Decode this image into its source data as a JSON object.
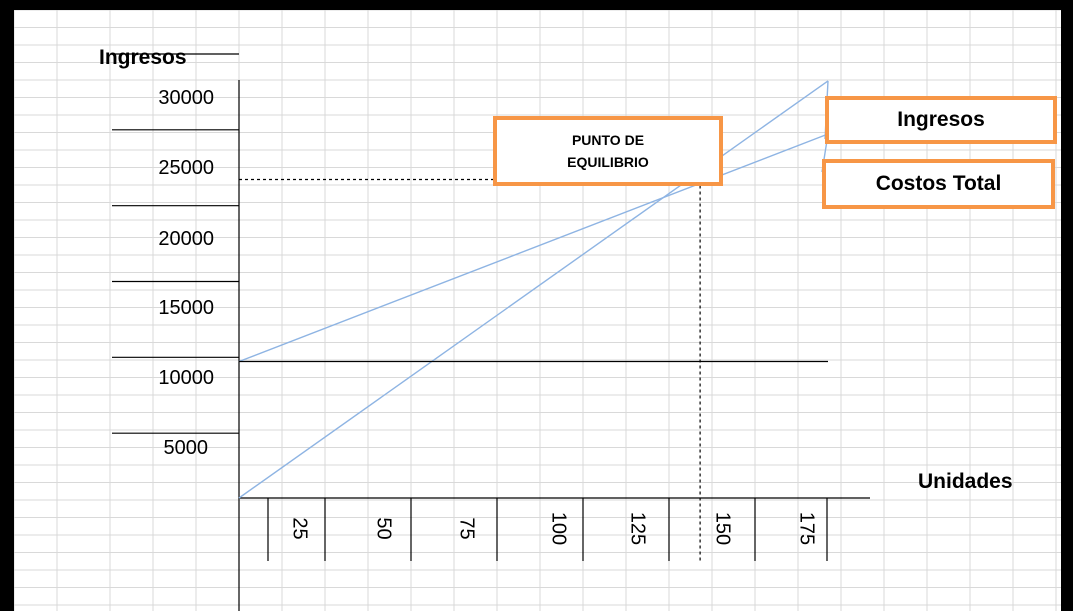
{
  "chart_data": {
    "type": "line",
    "ylabel": "Ingresos",
    "xlabel": "Unidades",
    "y_ticks": [
      "30000",
      "25000",
      "20000",
      "15000",
      "10000",
      "5000"
    ],
    "x_ticks": [
      "25",
      "50",
      "75",
      "100",
      "125",
      "150",
      "175"
    ],
    "xlim": [
      0,
      175
    ],
    "ylim": [
      0,
      30000
    ],
    "series": [
      {
        "name": "Ingresos",
        "x": [
          0,
          175
        ],
        "y": [
          0,
          27500
        ]
      },
      {
        "name": "Costos Total",
        "x": [
          0,
          175
        ],
        "y": [
          9000,
          24000
        ]
      },
      {
        "name": "",
        "x": [
          0,
          175
        ],
        "y": [
          9000,
          9000
        ]
      }
    ],
    "break_even": {
      "label": "PUNTO DE EQUILIBRIO",
      "x": 137,
      "y": 21000
    },
    "grid": true,
    "colors": {
      "line": "#8eb4e3",
      "callout_border": "#f79646",
      "marker": "#4aaecb"
    }
  }
}
